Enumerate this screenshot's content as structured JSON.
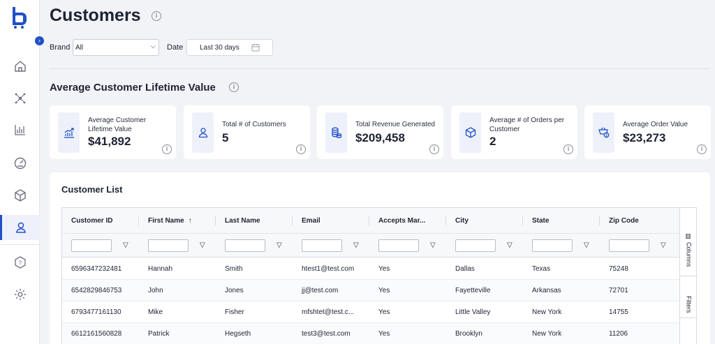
{
  "app": {
    "page_title": "Customers",
    "accent_color": "#2150c7"
  },
  "sidebar": {
    "items": [
      {
        "name": "home-icon",
        "active": false
      },
      {
        "name": "network-icon",
        "active": false
      },
      {
        "name": "bar-chart-icon",
        "active": false
      },
      {
        "name": "gauge-icon",
        "active": false
      },
      {
        "name": "box-icon",
        "active": false
      },
      {
        "name": "user-icon",
        "active": true
      },
      {
        "name": "help-icon",
        "active": false
      },
      {
        "name": "settings-icon",
        "active": false
      }
    ],
    "expand_glyph": "›"
  },
  "filters": {
    "brand_label": "Brand",
    "brand_value": "All",
    "date_label": "Date",
    "date_value": "Last 30 days"
  },
  "section": {
    "title": "Average Customer Lifetime Value"
  },
  "stats": [
    {
      "label": "Average Customer Lifetime Value",
      "value": "$41,892",
      "icon": "chart-growth-icon"
    },
    {
      "label": "Total # of Customers",
      "value": "5",
      "icon": "user-icon"
    },
    {
      "label": "Total Revenue Generated",
      "value": "$209,458",
      "icon": "coins-icon"
    },
    {
      "label": "Average # of Orders per Customer",
      "value": "2",
      "icon": "box-icon"
    },
    {
      "label": "Average Order Value",
      "value": "$23,273",
      "icon": "cart-dollar-icon"
    }
  ],
  "customer_list": {
    "title": "Customer List",
    "columns": [
      "Customer ID",
      "First Name",
      "Last Name",
      "Email",
      "Accepts Mar...",
      "City",
      "State",
      "Zip Code"
    ],
    "sorted_column": "First Name",
    "sort_glyph": "↑",
    "rows": [
      [
        "6596347232481",
        "Hannah",
        "Smith",
        "htest1@test.com",
        "Yes",
        "Dallas",
        "Texas",
        "75248"
      ],
      [
        "6542829846753",
        "John",
        "Jones",
        "jj@test.com",
        "Yes",
        "Fayetteville",
        "Arkansas",
        "72701"
      ],
      [
        "6793477161130",
        "Mike",
        "Fisher",
        "mfshtet@test.c...",
        "Yes",
        "Little Valley",
        "New York",
        "14755"
      ],
      [
        "6612161560828",
        "Patrick",
        "Hegseth",
        "test3@test.com",
        "Yes",
        "Brooklyn",
        "New York",
        "11206"
      ]
    ],
    "side_tools": {
      "columns_label": "Columns",
      "filters_label": "Filters"
    }
  }
}
